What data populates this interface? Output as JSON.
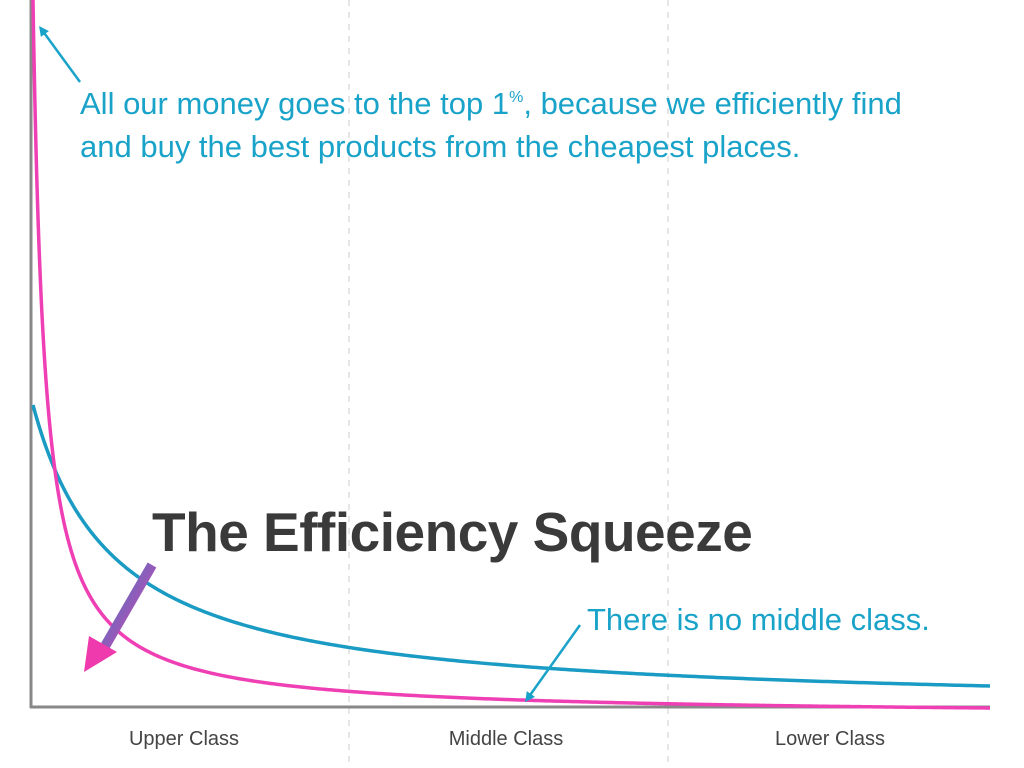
{
  "chart_data": {
    "type": "line",
    "title": "The Efficiency Squeeze",
    "categories": [
      "Upper Class",
      "Middle Class",
      "Lower Class"
    ],
    "series": [
      {
        "values": [
          1.0,
          0.48,
          0.33,
          0.24,
          0.19,
          0.155,
          0.13,
          0.105,
          0.085,
          0.07,
          0.06,
          0.05,
          0.045
        ],
        "x": [
          0.0,
          0.1,
          0.2,
          0.3,
          0.4,
          0.5,
          0.6,
          0.7,
          0.8,
          0.9,
          1.0,
          1.1,
          1.2
        ]
      },
      {
        "values": [
          2.3,
          0.25,
          0.08,
          0.04,
          0.025,
          0.018,
          0.014,
          0.011,
          0.009,
          0.007,
          0.006,
          0.005,
          0.004
        ],
        "x": [
          0.0,
          0.1,
          0.2,
          0.3,
          0.4,
          0.5,
          0.6,
          0.7,
          0.8,
          0.9,
          1.0,
          1.1,
          1.2
        ]
      }
    ],
    "grid": "vertical-dashed",
    "colors": {
      "before": "#1a9bc4",
      "after": "#ef3fb4",
      "annotation": "#1aa3c9",
      "axis": "#888888",
      "grid": "#dddddd",
      "title": "#3a3a3a",
      "arrow_start": "#2f7fc8",
      "arrow_end": "#ee3aac"
    },
    "annotations": {
      "top_line_1": "All our money goes to the top 1",
      "top_percent": "%",
      "top_line_1_end": ", because we efficiently find",
      "top_line_2": "and buy the best products from the cheapest places.",
      "middle": "There is no middle class."
    }
  }
}
